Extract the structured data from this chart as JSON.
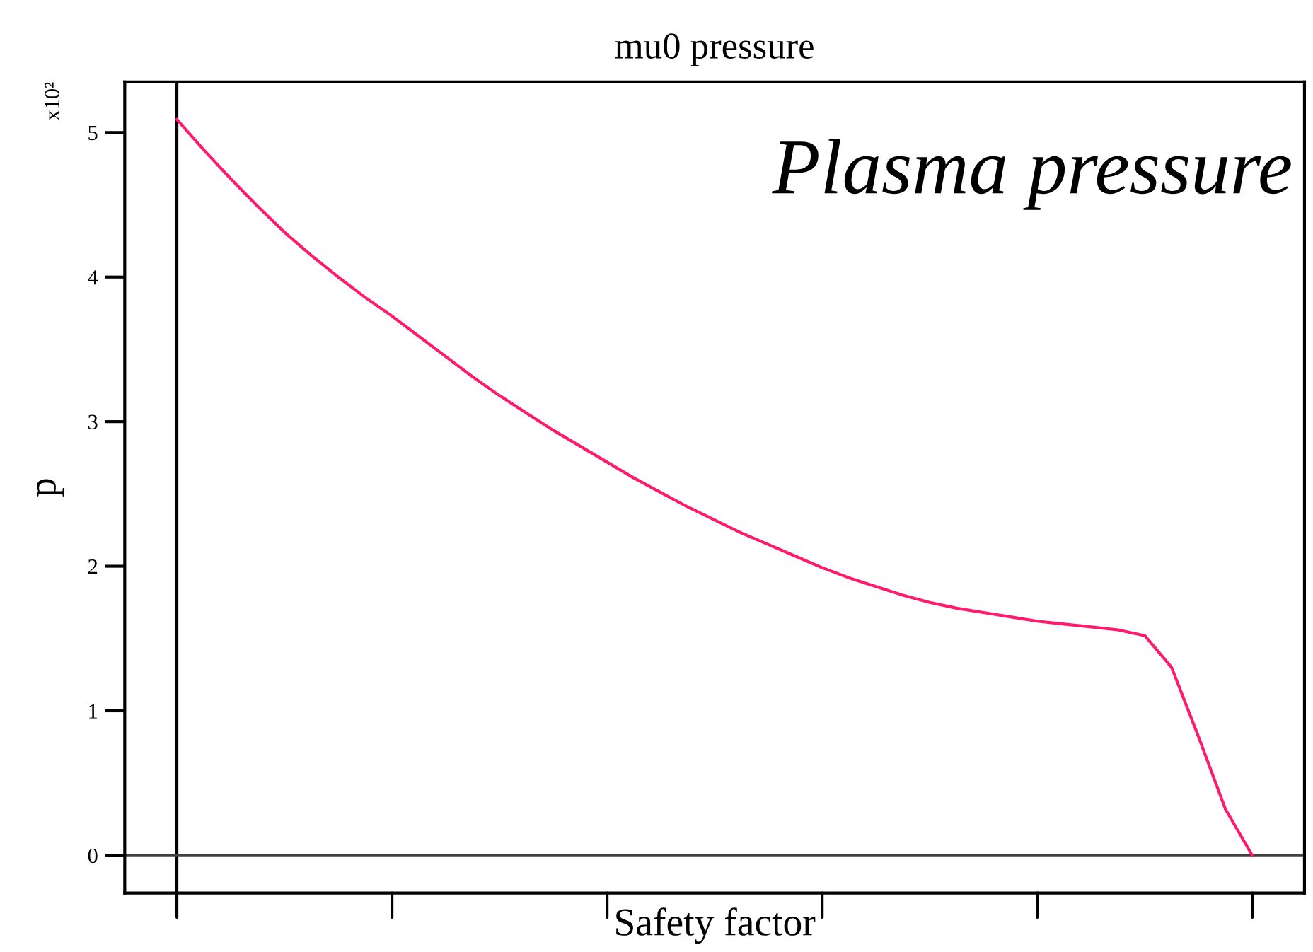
{
  "chart_data": {
    "type": "line",
    "title": "mu0 pressure",
    "xlabel": "Safety factor",
    "ylabel": "p",
    "annotations": [
      "Plasma pressure",
      "x10²"
    ],
    "categories": [
      null,
      null,
      null,
      null,
      null,
      null,
      null,
      null,
      null,
      null,
      null,
      null,
      null,
      null,
      null,
      null,
      null,
      null,
      null,
      null,
      null,
      null,
      null,
      null,
      null,
      null,
      null,
      null,
      null,
      null,
      null,
      null,
      null,
      null,
      null,
      null,
      null,
      null,
      null,
      null,
      null
    ],
    "series": [
      {
        "color": "#ff1a6e",
        "values": [
          5.09,
          4.88,
          4.68,
          4.49,
          4.31,
          4.15,
          4.0,
          3.86,
          3.73,
          3.59,
          3.45,
          3.31,
          3.18,
          3.06,
          2.94,
          2.83,
          2.72,
          2.61,
          2.51,
          2.41,
          2.32,
          2.23,
          2.15,
          2.07,
          1.99,
          1.92,
          1.86,
          1.8,
          1.75,
          1.71,
          1.68,
          1.65,
          1.62,
          1.6,
          1.58,
          1.56,
          1.52,
          1.3,
          0.82,
          0.32,
          0
        ]
      }
    ],
    "ylim": [
      -0.26,
      5.35
    ],
    "yticks": [
      0,
      1,
      2,
      3,
      4,
      5
    ],
    "ref_lines": [
      {
        "axis": "y",
        "value": 0,
        "color": "#404040"
      }
    ],
    "tick_labels": "y",
    "grid": false,
    "marker": "none",
    "line_style": "solid"
  }
}
